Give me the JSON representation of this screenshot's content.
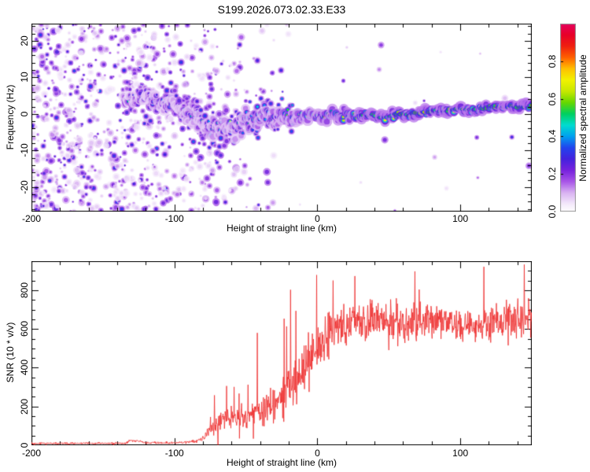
{
  "title": "S199.2026.073.02.33.E33",
  "chart_data": [
    {
      "type": "heatmap",
      "name": "doppler-spectrogram",
      "title": "S199.2026.073.02.33.E33",
      "xlabel": "Height of straight line (km)",
      "ylabel": "Frequency (Hz)",
      "xlim": [
        -200,
        150
      ],
      "ylim": [
        -26.7,
        24.7
      ],
      "x_major_ticks": [
        -200,
        -100,
        0,
        100
      ],
      "x_tick_labels": [
        "-200",
        "-100",
        "0",
        "100"
      ],
      "x_minor_step": 20,
      "y_major_ticks": [
        -20,
        -10,
        0,
        10,
        20
      ],
      "y_tick_labels": [
        "-20",
        "-10",
        "0",
        "10",
        "20"
      ],
      "y_minor_step": 2,
      "colorbar": {
        "label": "Normalized spectral amplitude",
        "ticks": [
          0,
          0.2,
          0.4,
          0.6,
          0.8
        ],
        "tick_labels": [
          "0.0",
          "0.2",
          "0.4",
          "0.6",
          "0.8"
        ],
        "stops": [
          [
            0.0,
            "#ffffff"
          ],
          [
            0.04,
            "#f4e9fb"
          ],
          [
            0.1,
            "#d9b3f2"
          ],
          [
            0.16,
            "#a855e8"
          ],
          [
            0.22,
            "#7722dd"
          ],
          [
            0.28,
            "#4422dd"
          ],
          [
            0.34,
            "#2244ee"
          ],
          [
            0.4,
            "#00a0f0"
          ],
          [
            0.46,
            "#00dcd0"
          ],
          [
            0.52,
            "#00d060"
          ],
          [
            0.58,
            "#66d800"
          ],
          [
            0.64,
            "#c8e800"
          ],
          [
            0.7,
            "#f2f200"
          ],
          [
            0.76,
            "#ffc000"
          ],
          [
            0.82,
            "#ff6000"
          ],
          [
            0.88,
            "#f02010"
          ],
          [
            0.94,
            "#e80028"
          ],
          [
            1.0,
            "#e6005e"
          ]
        ]
      },
      "band_path": [
        [
          -135,
          3.5,
          0.38,
          3.0
        ],
        [
          -128,
          4.2,
          0.42,
          3.0
        ],
        [
          -120,
          4.5,
          0.46,
          3.2
        ],
        [
          -112,
          3.5,
          0.5,
          3.2
        ],
        [
          -105,
          3.0,
          0.5,
          3.5
        ],
        [
          -98,
          2.0,
          0.48,
          3.6
        ],
        [
          -92,
          0.5,
          0.5,
          3.8
        ],
        [
          -86,
          -0.5,
          0.5,
          4.2
        ],
        [
          -80,
          -2.0,
          0.52,
          5.0
        ],
        [
          -75,
          -4.5,
          0.5,
          5.4
        ],
        [
          -70,
          -3.5,
          0.55,
          5.5
        ],
        [
          -66,
          -5.0,
          0.52,
          5.5
        ],
        [
          -62,
          -2.5,
          0.55,
          5.5
        ],
        [
          -58,
          -4.0,
          0.52,
          5.3
        ],
        [
          -54,
          -2.0,
          0.55,
          5.1
        ],
        [
          -50,
          -1.0,
          0.6,
          5.0
        ],
        [
          -46,
          -2.5,
          0.62,
          4.8
        ],
        [
          -42,
          -1.5,
          0.68,
          4.6
        ],
        [
          -38,
          0.5,
          0.64,
          4.5
        ],
        [
          -34,
          -0.5,
          0.62,
          4.4
        ],
        [
          -30,
          -1.5,
          0.65,
          4.2
        ],
        [
          -26,
          0.0,
          0.66,
          4.0
        ],
        [
          -22,
          -0.5,
          0.68,
          3.6
        ],
        [
          -18,
          -1.0,
          0.7,
          3.4
        ],
        [
          -14,
          0.0,
          0.7,
          3.2
        ],
        [
          -10,
          -0.8,
          0.72,
          3.0
        ],
        [
          -6,
          0.0,
          0.74,
          2.8
        ],
        [
          -2,
          -0.5,
          0.78,
          2.6
        ],
        [
          2,
          -1.0,
          0.78,
          2.5
        ],
        [
          6,
          -0.5,
          0.8,
          2.4
        ],
        [
          10,
          0.0,
          0.82,
          2.3
        ],
        [
          16,
          -0.8,
          0.85,
          2.2
        ],
        [
          22,
          -0.3,
          0.88,
          2.1
        ],
        [
          28,
          -0.8,
          0.85,
          2.0
        ],
        [
          34,
          -0.2,
          0.9,
          1.9
        ],
        [
          40,
          -0.5,
          0.9,
          1.8
        ],
        [
          46,
          -1.0,
          0.95,
          1.8
        ],
        [
          52,
          -0.5,
          0.9,
          1.7
        ],
        [
          58,
          0.0,
          0.95,
          1.7
        ],
        [
          64,
          -0.3,
          0.92,
          1.6
        ],
        [
          70,
          0.2,
          0.95,
          1.6
        ],
        [
          76,
          0.5,
          0.93,
          1.6
        ],
        [
          82,
          1.0,
          0.95,
          1.6
        ],
        [
          88,
          0.8,
          0.93,
          1.5
        ],
        [
          94,
          1.0,
          0.95,
          1.5
        ],
        [
          100,
          1.2,
          0.96,
          1.5
        ],
        [
          106,
          1.0,
          0.94,
          1.5
        ],
        [
          112,
          1.3,
          0.96,
          1.5
        ],
        [
          118,
          1.8,
          0.93,
          1.5
        ],
        [
          124,
          2.0,
          0.96,
          1.5
        ],
        [
          130,
          1.8,
          0.95,
          1.5
        ],
        [
          136,
          2.2,
          0.96,
          1.5
        ],
        [
          142,
          2.0,
          0.95,
          1.5
        ],
        [
          148,
          2.2,
          0.96,
          1.5
        ]
      ],
      "noise_regions": [
        [
          -200,
          -150,
          1.0
        ],
        [
          -150,
          -143,
          0.5
        ],
        [
          -143,
          -128,
          0.95
        ],
        [
          -128,
          -105,
          0.85
        ],
        [
          -105,
          -96,
          0.45
        ],
        [
          -96,
          -70,
          0.6
        ],
        [
          -70,
          -52,
          0.3
        ],
        [
          -52,
          -32,
          0.15
        ],
        [
          -32,
          -12,
          0.06
        ],
        [
          -12,
          150,
          0.015
        ]
      ]
    },
    {
      "type": "line",
      "name": "snr-profile",
      "xlabel": "Height of straight line (km)",
      "ylabel": "SNR (10 * v/v)",
      "xlim": [
        -200,
        150
      ],
      "ylim": [
        0,
        950
      ],
      "x_major_ticks": [
        -200,
        -100,
        0,
        100
      ],
      "x_tick_labels": [
        "-200",
        "-100",
        "0",
        "100"
      ],
      "x_minor_step": 20,
      "y_major_ticks": [
        0,
        200,
        400,
        600,
        800
      ],
      "y_tick_labels": [
        "0",
        "200",
        "400",
        "600",
        "800"
      ],
      "y_minor_step": 50,
      "line_color": "#ee3333",
      "profile": [
        [
          -200,
          10,
          7,
          0.004,
          32
        ],
        [
          -150,
          10,
          7,
          0.004,
          32
        ],
        [
          -135,
          11,
          8,
          0.004,
          34
        ],
        [
          -131,
          24,
          13,
          0.01,
          45
        ],
        [
          -126,
          22,
          12,
          0.01,
          42
        ],
        [
          -121,
          13,
          8,
          0.004,
          30
        ],
        [
          -100,
          13,
          9,
          0.004,
          30
        ],
        [
          -90,
          16,
          10,
          0.004,
          34
        ],
        [
          -84,
          22,
          14,
          0.01,
          60
        ],
        [
          -79,
          45,
          30,
          0.01,
          120
        ],
        [
          -74,
          95,
          55,
          0.01,
          260
        ],
        [
          -68,
          120,
          75,
          0.02,
          330
        ],
        [
          -60,
          140,
          85,
          0.02,
          430
        ],
        [
          -52,
          150,
          95,
          0.03,
          480
        ],
        [
          -45,
          160,
          100,
          0.02,
          520
        ],
        [
          -38,
          185,
          120,
          0.02,
          900
        ],
        [
          -32,
          205,
          130,
          0.02,
          920
        ],
        [
          -26,
          260,
          150,
          0.03,
          930
        ],
        [
          -20,
          300,
          160,
          0.04,
          940
        ],
        [
          -14,
          345,
          170,
          0.04,
          940
        ],
        [
          -8,
          420,
          180,
          0.04,
          945
        ],
        [
          -2,
          475,
          180,
          0.03,
          945
        ],
        [
          4,
          540,
          170,
          0.03,
          905
        ],
        [
          10,
          580,
          160,
          0.025,
          905
        ],
        [
          20,
          620,
          150,
          0.02,
          900
        ],
        [
          40,
          645,
          140,
          0.02,
          925
        ],
        [
          60,
          630,
          140,
          0.02,
          905
        ],
        [
          80,
          645,
          135,
          0.02,
          925
        ],
        [
          100,
          620,
          130,
          0.02,
          905
        ],
        [
          120,
          630,
          135,
          0.02,
          925
        ],
        [
          140,
          645,
          140,
          0.03,
          945
        ],
        [
          150,
          650,
          140,
          0.05,
          945
        ]
      ]
    }
  ]
}
